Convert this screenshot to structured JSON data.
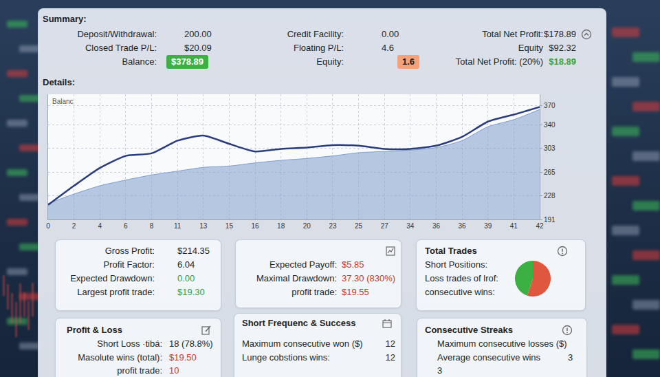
{
  "summary": {
    "title": "Summary:",
    "rows": [
      [
        {
          "label": "Deposit/Withdrawal:",
          "value": "200.00"
        },
        {
          "label": "Credit Facility:",
          "value": "0.00"
        },
        {
          "label": "Total Net Profit:",
          "value": "$178.89"
        }
      ],
      [
        {
          "label": "Closed Trade P/L:",
          "value": "$20.09"
        },
        {
          "label": "Floating P/L:",
          "value": "4.6"
        },
        {
          "label": "Equity",
          "value": "$92.32"
        }
      ],
      [
        {
          "label": "Balance:",
          "value": "$378.89",
          "badge": true,
          "color": "#3cb043"
        },
        {
          "label": "Equity:",
          "value": "1.6",
          "badge": true,
          "color": "#f5a27a"
        },
        {
          "label": "Total Net Profit: (20%)",
          "value": "$18.89",
          "color": "#3aa63a"
        }
      ]
    ]
  },
  "details_title": "Details:",
  "chart_data": {
    "type": "line",
    "annotations": [
      "Balanc"
    ],
    "categories": [
      "0",
      "2",
      "4",
      "6",
      "8",
      "11",
      "13",
      "15",
      "16",
      "18",
      "20",
      "23",
      "25",
      "27",
      "34",
      "36",
      "36",
      "39",
      "41",
      "42"
    ],
    "series": [
      {
        "type": "area",
        "color": "#7f9ccc",
        "values": [
          216,
          231,
          244,
          253,
          261,
          267,
          273,
          275,
          280,
          284,
          287,
          291,
          296,
          298,
          300,
          304,
          315,
          337,
          348,
          364
        ]
      },
      {
        "type": "line",
        "color": "#2a3c7c",
        "values": [
          214,
          244,
          272,
          291,
          295,
          315,
          323,
          310,
          298,
          302,
          304,
          308,
          307,
          302,
          302,
          307,
          321,
          345,
          356,
          368
        ]
      }
    ],
    "ylim": [
      191,
      388
    ],
    "yticks": [
      191,
      228,
      265,
      303,
      340,
      370
    ],
    "grid": true
  },
  "panels": [
    {
      "rows": [
        {
          "label": "Gross Profit:",
          "value": "$214.35"
        },
        {
          "label": "Profit Factor:",
          "value": "6.04"
        },
        {
          "label": "Expected Drawdown:",
          "value": "0.00",
          "color": "#2f9e44"
        },
        {
          "label": "Largest profit trade:",
          "value": "$19.30",
          "color": "#2f9e44"
        }
      ]
    },
    {
      "rows": [
        {
          "label": "Expected Payoff:",
          "value": "$5.85",
          "color": "#c0392b"
        },
        {
          "label": "Maximal Drawdown:",
          "value": "37.30 (830%)",
          "color": "#c0392b"
        },
        {
          "label": "profit trade:",
          "value": "$19.55",
          "color": "#c0392b"
        }
      ]
    },
    {
      "title": "Total Trades",
      "rows": [
        {
          "label": "Short Positions:"
        },
        {
          "label": "Loss trades of lrof:"
        },
        {
          "label": "consecutive wins:"
        }
      ],
      "pie": {
        "type": "pie",
        "values": [
          55,
          45
        ],
        "colors": [
          "#e0573f",
          "#3cb043"
        ]
      }
    },
    {
      "title": "Profit & Loss",
      "rows": [
        {
          "label": "Short Loss ·tibá:",
          "value": "18 (78.8%)"
        },
        {
          "label": "Masolute wins (total):",
          "value": "$19.50",
          "color": "#c0392b"
        },
        {
          "label": "profit trade:",
          "value": "10",
          "color": "#c0392b"
        }
      ]
    },
    {
      "title": "Short Frequenc & Success",
      "rows": [
        {
          "label": "Maximum consecutive won ($)",
          "value": "12"
        },
        {
          "label": "Lunge cobstions wins:",
          "value": "12"
        }
      ]
    },
    {
      "title": "Consecutive Streaks",
      "rows": [
        {
          "label": "Maximum consecutive losses ($)"
        },
        {
          "label": "Average consecutive wins",
          "value": "3"
        },
        {
          "value": "3"
        }
      ]
    }
  ]
}
